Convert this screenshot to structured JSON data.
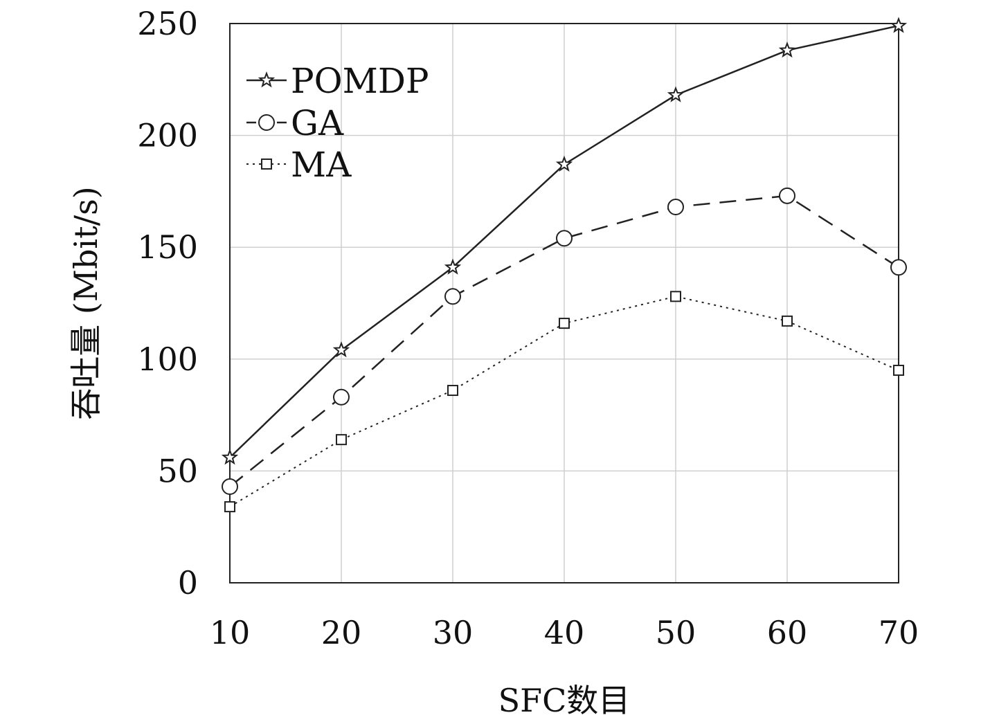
{
  "chart_data": {
    "type": "line",
    "title": "",
    "xlabel": "SFC数目",
    "ylabel": "吞吐量 (Mbit/s)",
    "x": [
      10,
      20,
      30,
      40,
      50,
      60,
      70
    ],
    "xlim": [
      10,
      70
    ],
    "ylim": [
      0,
      250
    ],
    "xticks": [
      "10",
      "20",
      "30",
      "40",
      "50",
      "60",
      "70"
    ],
    "yticks": [
      "0",
      "50",
      "100",
      "150",
      "200",
      "250"
    ],
    "grid": true,
    "legend_position": "top-left",
    "series": [
      {
        "name": "POMDP",
        "marker": "star",
        "line_style": "solid",
        "values": [
          56,
          104,
          141,
          187,
          218,
          238,
          249
        ]
      },
      {
        "name": "GA",
        "marker": "circle",
        "line_style": "dashed",
        "values": [
          43,
          83,
          128,
          154,
          168,
          173,
          141
        ]
      },
      {
        "name": "MA",
        "marker": "square",
        "line_style": "dotted",
        "values": [
          34,
          64,
          86,
          116,
          128,
          117,
          95
        ]
      }
    ]
  }
}
